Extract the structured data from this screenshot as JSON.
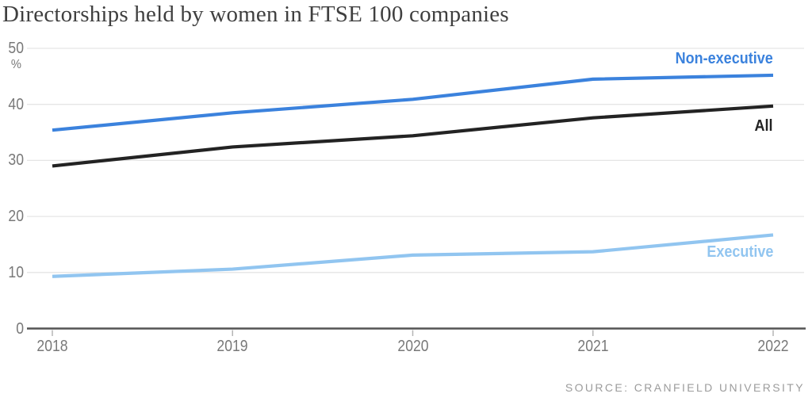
{
  "title": "Directorships held by women in FTSE 100 companies",
  "source": "SOURCE: CRANFIELD UNIVERSITY",
  "colors": {
    "non_executive": "#3b82dd",
    "all": "#232323",
    "executive": "#91c5f0",
    "grid": "#e5e5e5",
    "axis": "#545454",
    "year_tick": "#b5b5b5",
    "tick_label": "#787878",
    "title_text": "#3f3f3f",
    "source_text": "#9c9c9c"
  },
  "chart_data": {
    "type": "line",
    "title": "Directorships held by women in FTSE 100 companies",
    "x": [
      2018,
      2019,
      2020,
      2021,
      2022
    ],
    "xlabel": "",
    "ylabel": "%",
    "ylim": [
      0,
      50
    ],
    "y_ticks": [
      0,
      10,
      20,
      30,
      40,
      50
    ],
    "grid": true,
    "legend_position": "inline labels at right end of each line",
    "series": [
      {
        "name": "Non-executive",
        "color": "#3b82dd",
        "values": [
          35.4,
          38.5,
          40.9,
          44.5,
          45.2
        ]
      },
      {
        "name": "All",
        "color": "#232323",
        "values": [
          29.0,
          32.4,
          34.4,
          37.6,
          39.7
        ]
      },
      {
        "name": "Executive",
        "color": "#91c5f0",
        "values": [
          9.3,
          10.6,
          13.1,
          13.7,
          16.7
        ]
      }
    ],
    "source": "SOURCE: CRANFIELD UNIVERSITY"
  }
}
